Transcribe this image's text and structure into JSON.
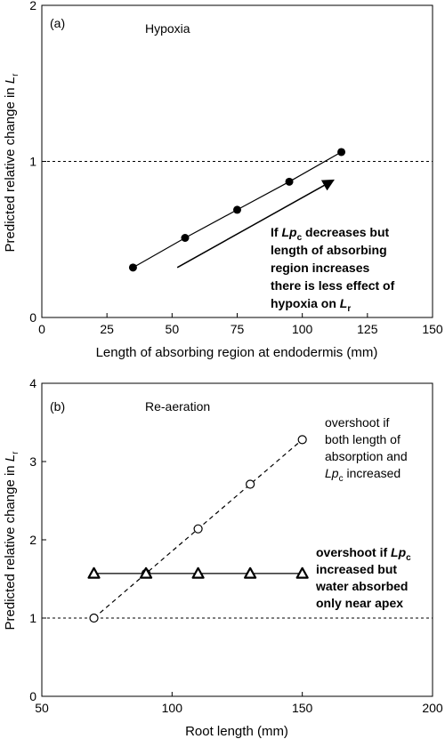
{
  "chart_data": [
    {
      "type": "line",
      "panel_label": "(a)",
      "title": "Hypoxia",
      "xlabel": "Length of absorbing region at endodermis (mm)",
      "ylabel": "Predicted relative change in L_r",
      "ylabel_main": "Predicted relative change in ",
      "ylabel_symbol": "L",
      "ylabel_sub": "r",
      "xlim": [
        0,
        150
      ],
      "ylim": [
        0,
        2
      ],
      "xticks": [
        0,
        25,
        50,
        75,
        100,
        125,
        150
      ],
      "yticks": [
        0,
        1,
        2
      ],
      "reference_line_y": 1,
      "grid": false,
      "series": [
        {
          "marker": "filled-circle",
          "line": "solid",
          "x": [
            35,
            55,
            75,
            95,
            115
          ],
          "y": [
            0.32,
            0.51,
            0.69,
            0.87,
            1.06
          ]
        }
      ],
      "arrow": {
        "from": [
          52,
          0.32
        ],
        "to": [
          112,
          0.88
        ]
      },
      "annotation": {
        "lines": [
          "If Lp_c decreases but",
          "length of absorbing",
          "region increases",
          "there is less effect of",
          "hypoxia on L_r"
        ],
        "line1_pre": "If ",
        "line1_sym": "Lp",
        "line1_sub": "c",
        "line1_post": " decreases but",
        "line2": "length of absorbing",
        "line3": "region increases",
        "line4": "there is less effect of",
        "line5_pre": "hypoxia on ",
        "line5_sym": "L",
        "line5_sub": "r"
      }
    },
    {
      "type": "line",
      "panel_label": "(b)",
      "title": "Re-aeration",
      "xlabel": "Root length (mm)",
      "ylabel": "Predicted relative change in L_r",
      "ylabel_main": "Predicted relative change in ",
      "ylabel_symbol": "L",
      "ylabel_sub": "r",
      "xlim": [
        50,
        200
      ],
      "ylim": [
        0,
        4
      ],
      "xticks": [
        50,
        100,
        150,
        200
      ],
      "yticks": [
        0,
        1,
        2,
        3,
        4
      ],
      "reference_line_y": 1,
      "grid": false,
      "series": [
        {
          "marker": "open-circle",
          "line": "dashed",
          "x": [
            70,
            90,
            110,
            130,
            150
          ],
          "y": [
            1.0,
            1.57,
            2.14,
            2.71,
            3.28
          ]
        },
        {
          "marker": "open-triangle",
          "line": "solid",
          "x": [
            70,
            90,
            110,
            130,
            150
          ],
          "y": [
            1.57,
            1.57,
            1.57,
            1.57,
            1.57
          ]
        }
      ],
      "annotations": [
        {
          "lines": [
            "overshoot if",
            "both length of",
            "absorption and",
            "Lp_c increased"
          ],
          "line1": "overshoot if",
          "line2": "both length of",
          "line3": "absorption and",
          "line4_sym": "Lp",
          "line4_sub": "c",
          "line4_post": " increased"
        },
        {
          "lines": [
            "overshoot if Lp_c",
            "increased but",
            "water absorbed",
            "only near apex"
          ],
          "line1_pre": "overshoot if ",
          "line1_sym": "Lp",
          "line1_sub": "c",
          "line2": "increased but",
          "line3": "water absorbed",
          "line4": "only near apex"
        }
      ]
    }
  ]
}
